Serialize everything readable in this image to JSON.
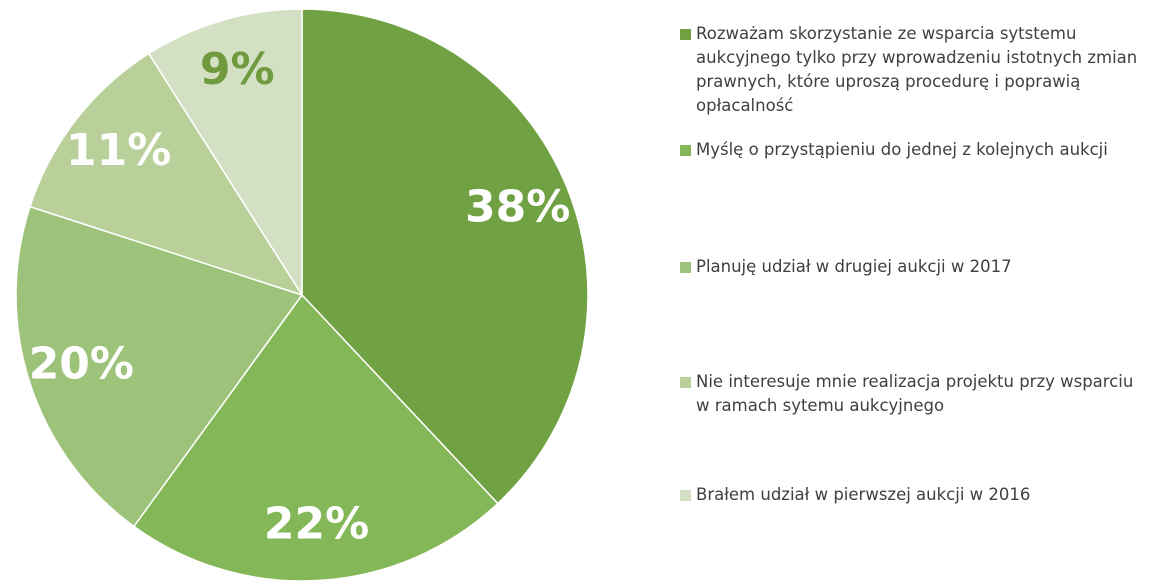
{
  "chart_data": {
    "type": "pie",
    "categories": [
      "Rozważam skorzystanie ze wsparcia sytstemu aukcyjnego tylko przy wprowadzeniu istotnych zmian prawnych, które uproszą procedurę i poprawią opłacalność",
      "Myślę o przystąpieniu do jednej z kolejnych aukcji",
      "Planuję udział w drugiej aukcji w 2017",
      "Nie interesuje mnie realizacja projektu przy wsparciu w ramach sytemu aukcyjnego",
      "Brałem udział w pierwszej aukcji w 2016"
    ],
    "values": [
      38,
      22,
      20,
      11,
      9
    ],
    "value_labels": [
      "38%",
      "22%",
      "20%",
      "11%",
      "9%"
    ],
    "colors": [
      "#70a244",
      "#84b757",
      "#9dc37a",
      "#b9d09a",
      "#d3e0c3"
    ],
    "label_colors": [
      "#ffffff",
      "#ffffff",
      "#ffffff",
      "#ffffff",
      "#6f9a3e"
    ]
  }
}
